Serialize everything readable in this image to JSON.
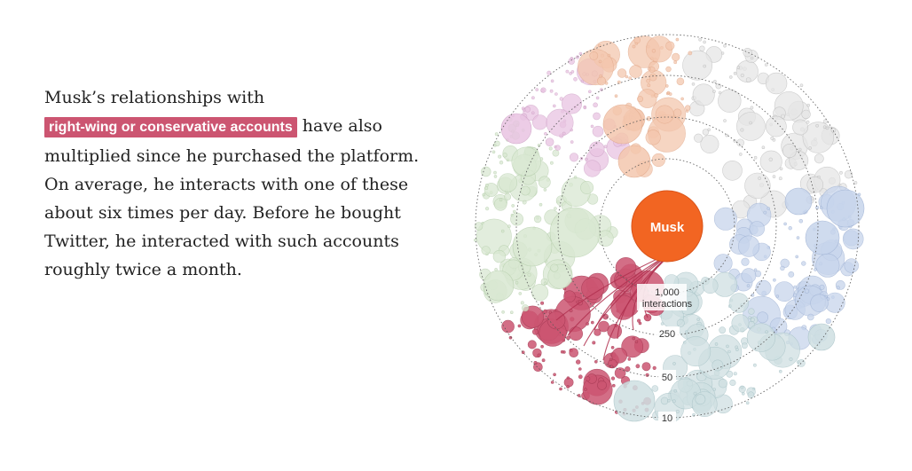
{
  "story": {
    "text_before": "Musk’s relationships with",
    "highlight": "right-wing or conservative accounts",
    "text_after": "have also multiplied since he purchased the platform. On average, he interacts with one of these about six times per day. Before he bought Twitter, he interacted with such accounts roughly twice a month."
  },
  "colors": {
    "highlight": "#cc5571",
    "musk": "#f26522",
    "right_wing": "#cc5571",
    "orange_group": "#f4c7ae",
    "pink_group": "#e9c4e2",
    "green_group": "#d9e8d2",
    "grey_group": "#e6e6e6",
    "blue_group": "#c7d5ec",
    "teal_group": "#cfe0e2"
  },
  "chart_data": {
    "type": "scatter",
    "center_label": "Musk",
    "ring_labels": [
      {
        "value": "1,000",
        "sub": "interactions"
      },
      {
        "value": "250",
        "sub": ""
      },
      {
        "value": "50",
        "sub": ""
      },
      {
        "value": "10",
        "sub": ""
      }
    ],
    "highlighted_group": "right-wing or conservative accounts",
    "groups": [
      "right-wing",
      "orange",
      "pink",
      "green",
      "grey",
      "blue",
      "teal"
    ]
  }
}
